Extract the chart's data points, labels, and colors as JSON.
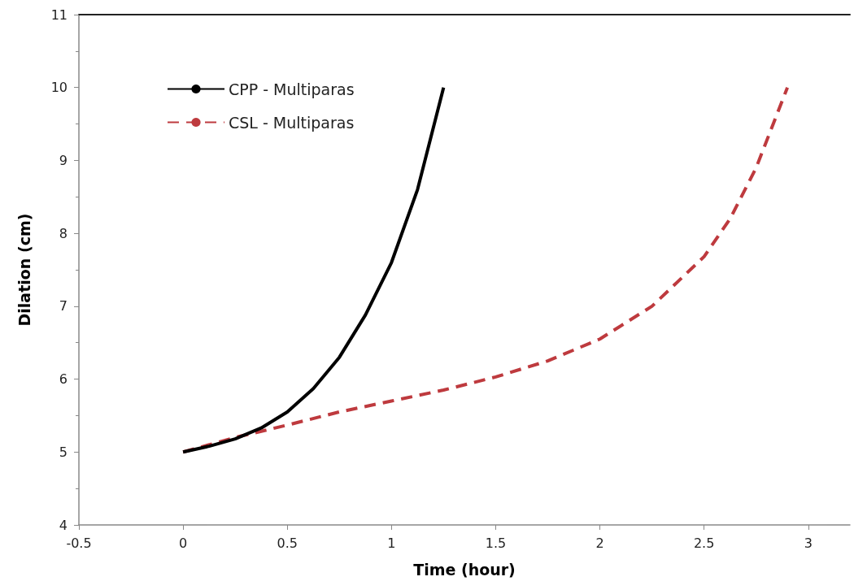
{
  "chart_data": {
    "type": "line",
    "xlabel": "Time (hour)",
    "ylabel": "Dilation (cm)",
    "xlim": [
      -0.5,
      3.2
    ],
    "xticks": [
      -0.5,
      0,
      0.5,
      1,
      1.5,
      2,
      2.5,
      3
    ],
    "ylim": [
      4,
      11
    ],
    "yticks": [
      4,
      5,
      6,
      7,
      8,
      9,
      10,
      11
    ],
    "grid": false,
    "legend": "top left",
    "marker": "none",
    "series": [
      {
        "name": "CPP - Multiparas",
        "color": "#000000",
        "line_style": "solid",
        "x": [
          0,
          0.125,
          0.25,
          0.375,
          0.5,
          0.625,
          0.75,
          0.875,
          1,
          1.125,
          1.25
        ],
        "values": [
          5,
          5.08,
          5.18,
          5.33,
          5.55,
          5.87,
          6.3,
          6.88,
          7.6,
          8.6,
          10
        ]
      },
      {
        "name": "CSL - Multiparas",
        "color": "#be3a3e",
        "line_style": "dashed",
        "x": [
          0,
          0.25,
          0.5,
          0.75,
          1,
          1.25,
          1.5,
          1.75,
          2,
          2.25,
          2.5,
          2.625,
          2.75,
          2.9
        ],
        "values": [
          5,
          5.2,
          5.37,
          5.55,
          5.7,
          5.85,
          6.03,
          6.25,
          6.55,
          7.0,
          7.68,
          8.2,
          8.9,
          10
        ]
      }
    ]
  }
}
